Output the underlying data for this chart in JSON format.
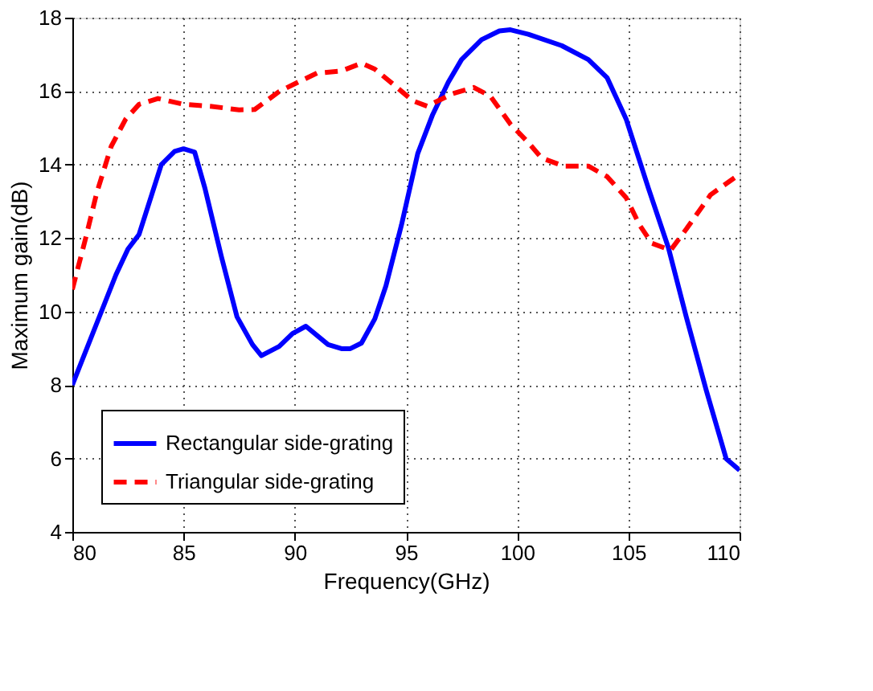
{
  "chart_data": {
    "type": "line",
    "xlabel": "Frequency(GHz)",
    "ylabel": "Maximum gain(dB)",
    "xlim": [
      80,
      110
    ],
    "xticks": [
      80,
      85,
      90,
      95,
      100,
      105,
      110
    ],
    "ylim": [
      4,
      18
    ],
    "yticks": [
      4,
      6,
      8,
      10,
      12,
      14,
      16,
      18
    ],
    "grid": true,
    "legend": "bottom left",
    "marker": "none",
    "series": [
      {
        "name": "Rectangular side-grating",
        "color": "#0000ff",
        "line_style": "solid",
        "x": [
          80,
          81.96,
          82.5,
          83.0,
          84.0,
          84.6,
          85.0,
          85.5,
          85.96,
          86.7,
          87.4,
          88.1,
          88.5,
          89.3,
          89.9,
          90.5,
          91.5,
          92.1,
          92.5,
          93.0,
          93.6,
          94.1,
          94.8,
          95.53,
          96.2,
          96.9,
          97.5,
          98.4,
          99.2,
          99.7,
          100.5,
          102.0,
          103.2,
          104.05,
          104.9,
          105.9,
          106.8,
          107.6,
          108.5,
          109.4,
          110
        ],
        "values": [
          8.0,
          11.0,
          11.7,
          12.1,
          14.0,
          14.36,
          14.43,
          14.34,
          13.36,
          11.5,
          9.86,
          9.1,
          8.8,
          9.05,
          9.4,
          9.6,
          9.1,
          8.99,
          8.99,
          9.14,
          9.8,
          10.7,
          12.36,
          14.3,
          15.36,
          16.24,
          16.86,
          17.4,
          17.64,
          17.67,
          17.55,
          17.24,
          16.86,
          16.36,
          15.24,
          13.36,
          11.74,
          9.86,
          7.86,
          5.99,
          5.68
        ]
      },
      {
        "name": "Triangular side-grating",
        "color": "#ff0000",
        "line_style": "dashed",
        "x": [
          80,
          80.6,
          81.1,
          81.75,
          82.4,
          83.0,
          83.85,
          85.0,
          86.2,
          87.5,
          88.2,
          89.3,
          90.2,
          91.0,
          92.1,
          93.0,
          93.6,
          94.4,
          95.3,
          95.95,
          97.1,
          98.05,
          98.8,
          99.7,
          100.5,
          101.1,
          102.1,
          103.2,
          104.05,
          104.9,
          105.5,
          106.05,
          106.9,
          107.6,
          108.7,
          110.0
        ],
        "values": [
          10.6,
          12.0,
          13.24,
          14.5,
          15.24,
          15.64,
          15.8,
          15.64,
          15.59,
          15.49,
          15.5,
          15.99,
          16.26,
          16.49,
          16.55,
          16.76,
          16.6,
          16.2,
          15.74,
          15.59,
          15.93,
          16.1,
          15.86,
          15.1,
          14.6,
          14.18,
          13.96,
          13.96,
          13.67,
          13.1,
          12.36,
          11.86,
          11.67,
          12.24,
          13.18,
          13.74
        ]
      }
    ]
  }
}
